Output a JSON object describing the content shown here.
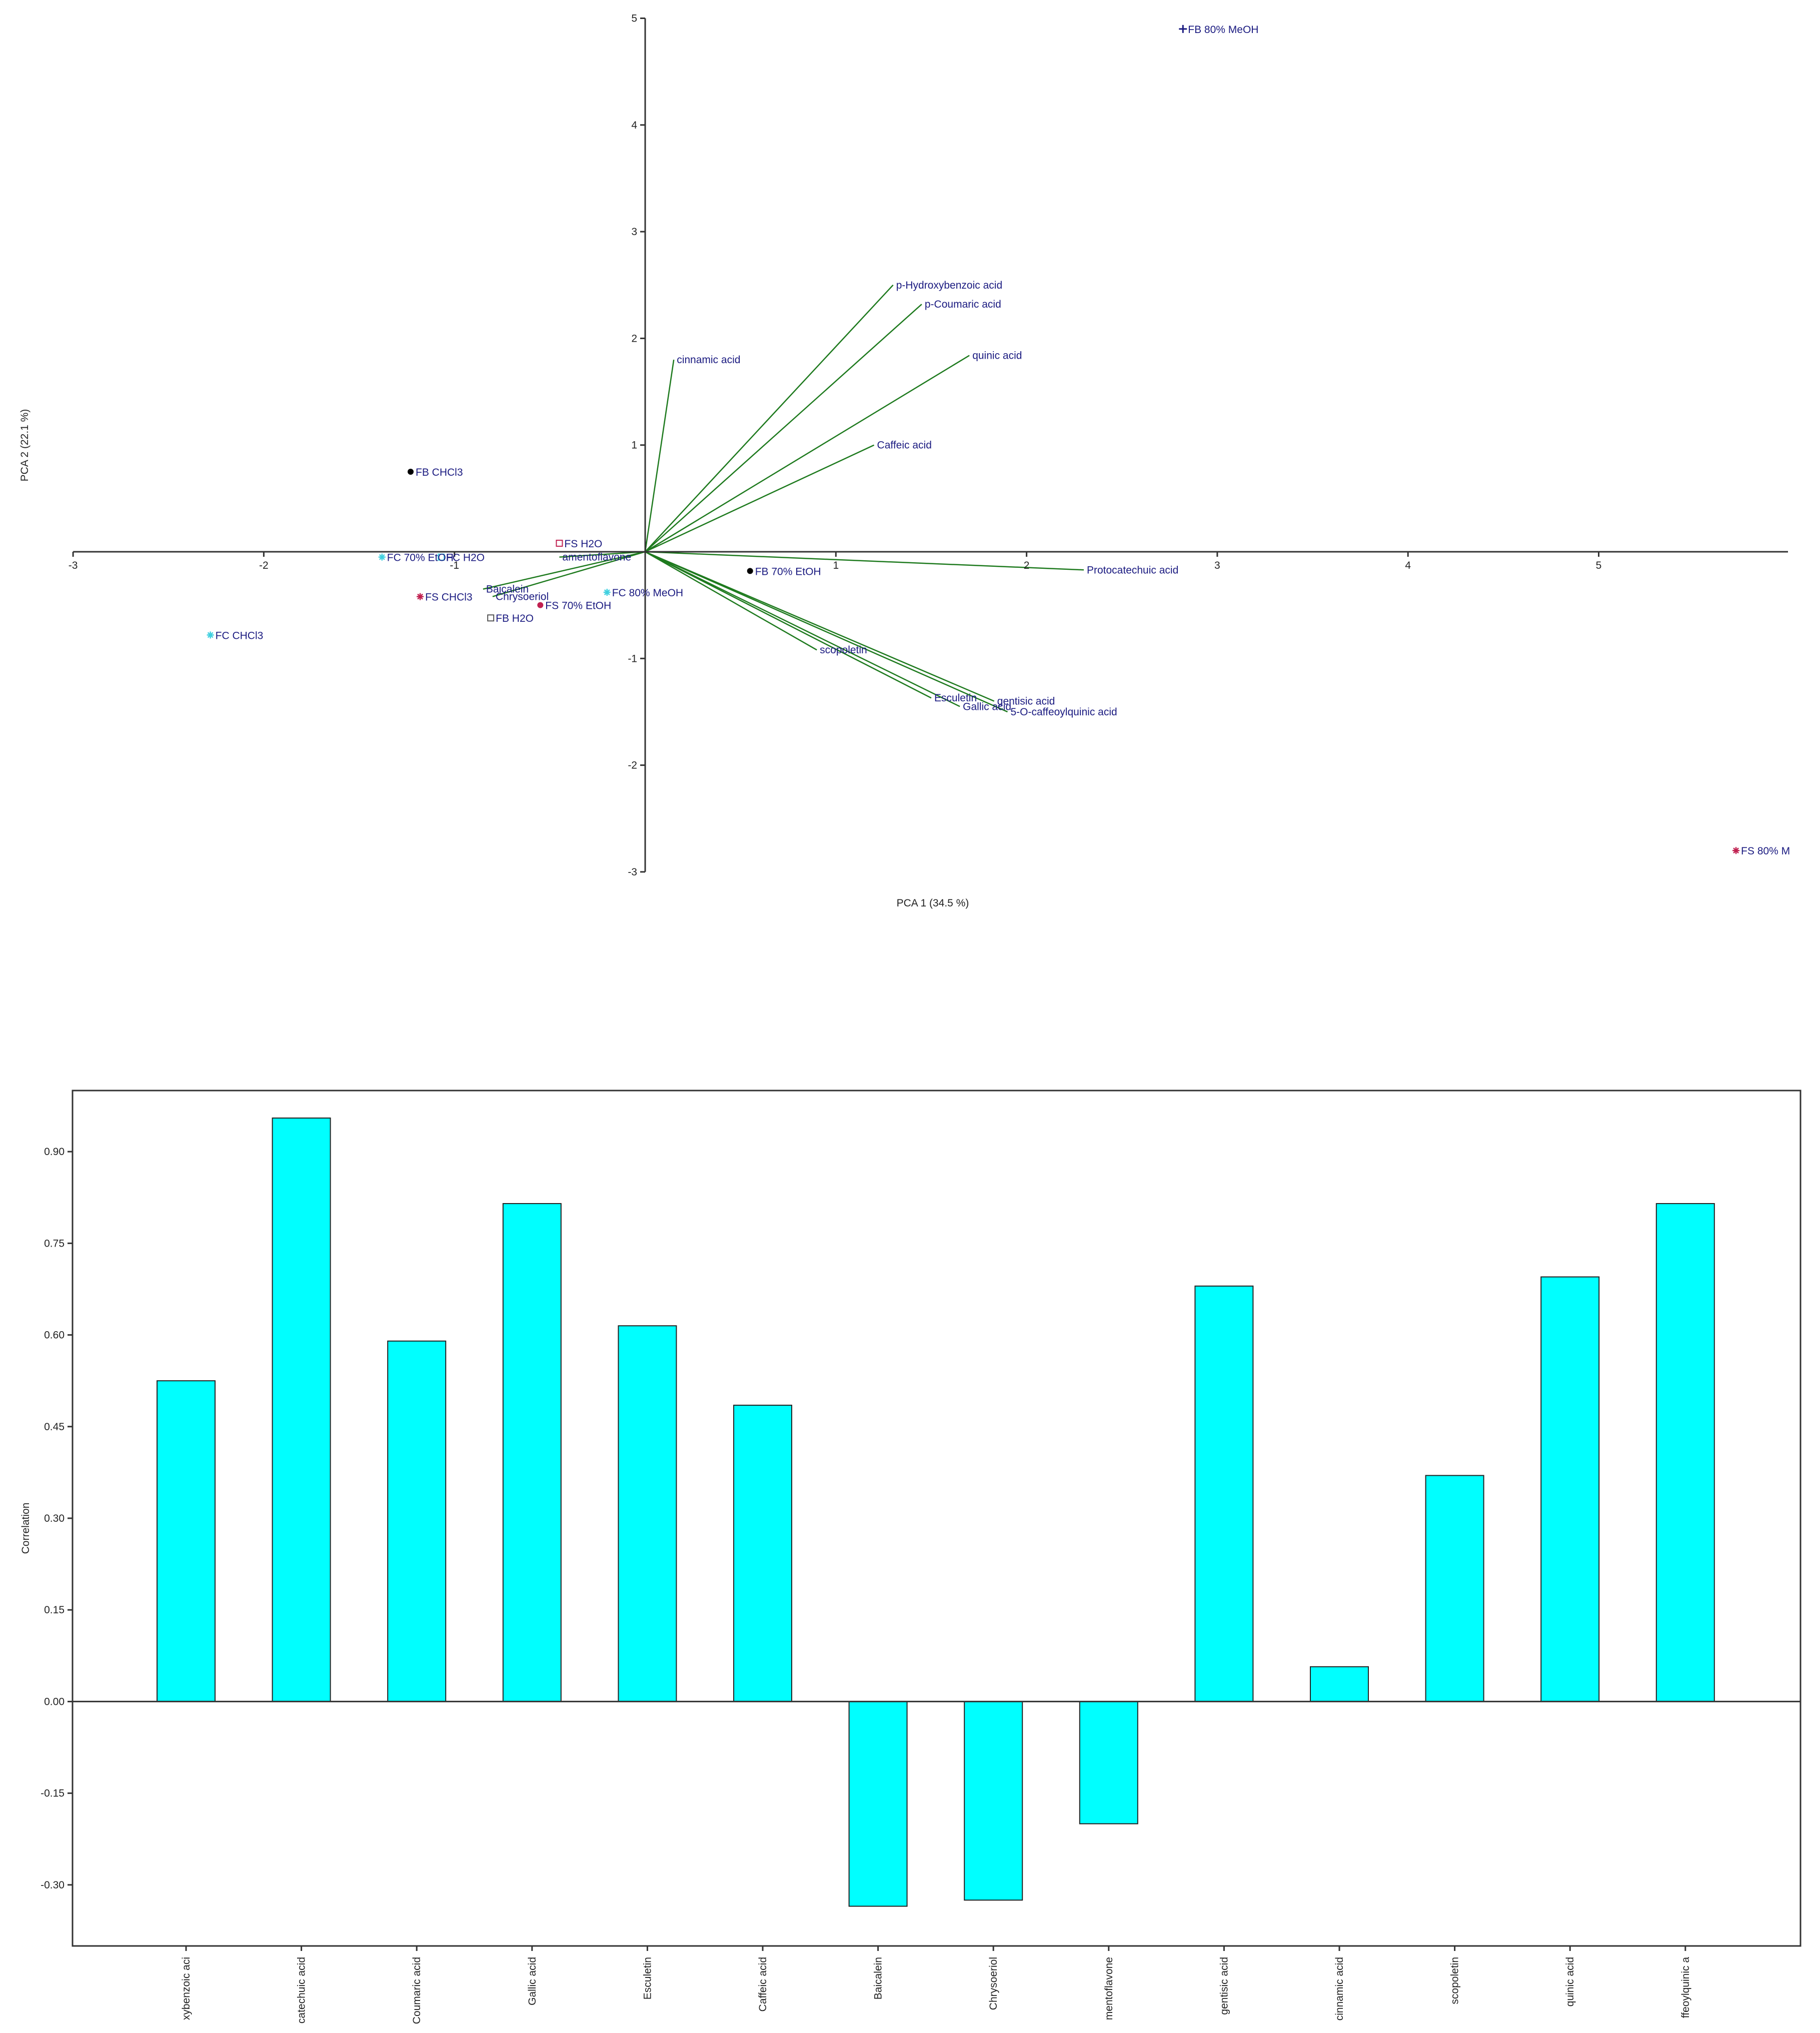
{
  "chart_data": [
    {
      "type": "scatter",
      "xlabel": "PCA 1 (34.5 %)",
      "ylabel": "PCA 2 (22.1 %)",
      "xlim": [
        -3,
        6
      ],
      "ylim": [
        -3,
        5
      ],
      "xticks": [
        -3,
        -2,
        -1,
        1,
        2,
        3,
        4,
        5
      ],
      "yticks": [
        -3,
        -2,
        -1,
        1,
        2,
        3,
        4,
        5
      ],
      "samples": [
        {
          "name": "FB 80% MeOH",
          "x": 2.82,
          "y": 4.9,
          "color": "#1a1a80",
          "marker": "plus"
        },
        {
          "name": "FB CHCl3",
          "x": -1.23,
          "y": 0.75,
          "color": "#000000",
          "marker": "dot"
        },
        {
          "name": "FC 70% EtOH",
          "x": -1.38,
          "y": -0.05,
          "color": "#40d0e0",
          "marker": "star"
        },
        {
          "name": "FC H2O",
          "x": -1.07,
          "y": -0.05,
          "color": "#40d0e0",
          "marker": "square"
        },
        {
          "name": "FS H2O",
          "x": -0.45,
          "y": 0.08,
          "color": "#c02050",
          "marker": "square"
        },
        {
          "name": "FS CHCl3",
          "x": -1.18,
          "y": -0.42,
          "color": "#c02050",
          "marker": "star"
        },
        {
          "name": "FC 80% MeOH",
          "x": -0.2,
          "y": -0.38,
          "color": "#40d0e0",
          "marker": "star"
        },
        {
          "name": "FS 70% EtOH",
          "x": -0.55,
          "y": -0.5,
          "color": "#c02050",
          "marker": "dot"
        },
        {
          "name": "FB H2O",
          "x": -0.81,
          "y": -0.62,
          "color": "#555555",
          "marker": "square"
        },
        {
          "name": "FC CHCl3",
          "x": -2.28,
          "y": -0.78,
          "color": "#40d0e0",
          "marker": "star"
        },
        {
          "name": "FB 70% EtOH",
          "x": 0.55,
          "y": -0.18,
          "color": "#000000",
          "marker": "dot"
        },
        {
          "name": "FS 80% M",
          "x": 5.72,
          "y": -2.8,
          "color": "#c02050",
          "marker": "star"
        }
      ],
      "loadings": [
        {
          "name": "p-Hydroxybenzoic acid",
          "x": 1.3,
          "y": 2.5
        },
        {
          "name": "p-Coumaric acid",
          "x": 1.45,
          "y": 2.32
        },
        {
          "name": "quinic acid",
          "x": 1.7,
          "y": 1.84
        },
        {
          "name": "cinnamic acid",
          "x": 0.15,
          "y": 1.8
        },
        {
          "name": "Caffeic acid",
          "x": 1.2,
          "y": 1.0
        },
        {
          "name": "Protocatechuic acid",
          "x": 2.3,
          "y": -0.17
        },
        {
          "name": "scopoletin",
          "x": 0.9,
          "y": -0.92
        },
        {
          "name": "Esculetin",
          "x": 1.5,
          "y": -1.37
        },
        {
          "name": "gentisic acid",
          "x": 1.83,
          "y": -1.4
        },
        {
          "name": "Gallic acid",
          "x": 1.65,
          "y": -1.45
        },
        {
          "name": "5-O-caffeoylquinic acid",
          "x": 1.9,
          "y": -1.5
        },
        {
          "name": "Baicalein",
          "x": -0.85,
          "y": -0.35
        },
        {
          "name": "Chrysoeriol",
          "x": -0.8,
          "y": -0.42
        },
        {
          "name": "amentoflavone",
          "x": -0.45,
          "y": -0.05
        }
      ],
      "line_color": "#1e7a1e"
    },
    {
      "type": "bar",
      "ylabel": "Correlation",
      "ylim": [
        -0.4,
        1.0
      ],
      "yticks": [
        -0.3,
        -0.15,
        0.0,
        0.15,
        0.3,
        0.45,
        0.6,
        0.75,
        0.9
      ],
      "ytick_labels": [
        "-0.30",
        "-0.15",
        "0.00",
        "0.15",
        "0.30",
        "0.45",
        "0.60",
        "0.75",
        "0.90"
      ],
      "categories": [
        "xybenzoic aci",
        "catechuic acid",
        "Coumaric acid",
        "Gallic acid",
        "Esculetin",
        "Caffeic acid",
        "Baicalein",
        "Chrysoeriol",
        "mentoflavone",
        "gentisic acid",
        "cinnamic acid",
        "scopoletin",
        "quinic acid",
        "ffeoylquinic a"
      ],
      "values": [
        0.525,
        0.955,
        0.59,
        0.815,
        0.615,
        0.485,
        -0.335,
        -0.325,
        -0.2,
        0.68,
        0.057,
        0.37,
        0.695,
        0.815
      ],
      "bar_color": "#00ffff"
    }
  ]
}
